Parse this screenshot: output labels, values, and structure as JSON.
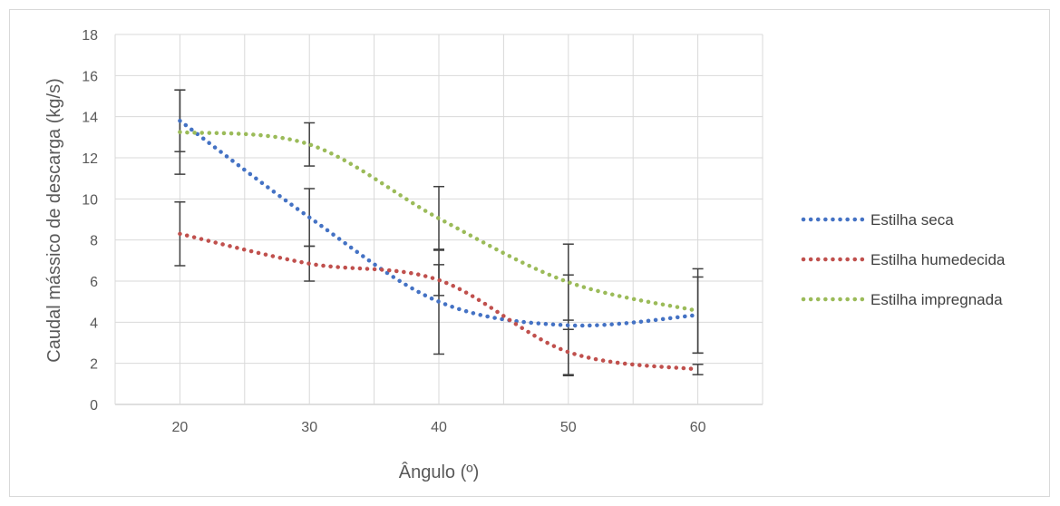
{
  "chart_data": {
    "type": "line",
    "title": "",
    "xlabel": "Ângulo (º)",
    "ylabel": "Caudal mássico de descarga (kg/s)",
    "x": [
      20,
      30,
      40,
      50,
      60
    ],
    "xlim": [
      15,
      65
    ],
    "ylim": [
      0,
      18
    ],
    "y_ticks": [
      0,
      2,
      4,
      6,
      8,
      10,
      12,
      14,
      16,
      18
    ],
    "x_ticks": [
      20,
      30,
      40,
      50,
      60
    ],
    "grid": true,
    "smoothed": true,
    "line_style": "dotted",
    "legend_position": "right",
    "series": [
      {
        "name": "Estilha seca",
        "color": "#4472c4",
        "values": [
          13.8,
          9.1,
          5.0,
          3.85,
          4.35
        ],
        "error": [
          1.5,
          1.4,
          2.55,
          2.45,
          1.85
        ]
      },
      {
        "name": "Estilha humedecida",
        "color": "#c0504d",
        "values": [
          8.3,
          6.85,
          6.05,
          2.55,
          1.7
        ],
        "error": [
          1.55,
          0.85,
          0.75,
          1.1,
          0.25
        ]
      },
      {
        "name": "Estilha impregnada",
        "color": "#9bbb59",
        "values": [
          13.25,
          12.65,
          9.05,
          5.95,
          4.55
        ],
        "error": [
          2.05,
          1.05,
          1.55,
          1.85,
          2.05
        ]
      }
    ]
  }
}
